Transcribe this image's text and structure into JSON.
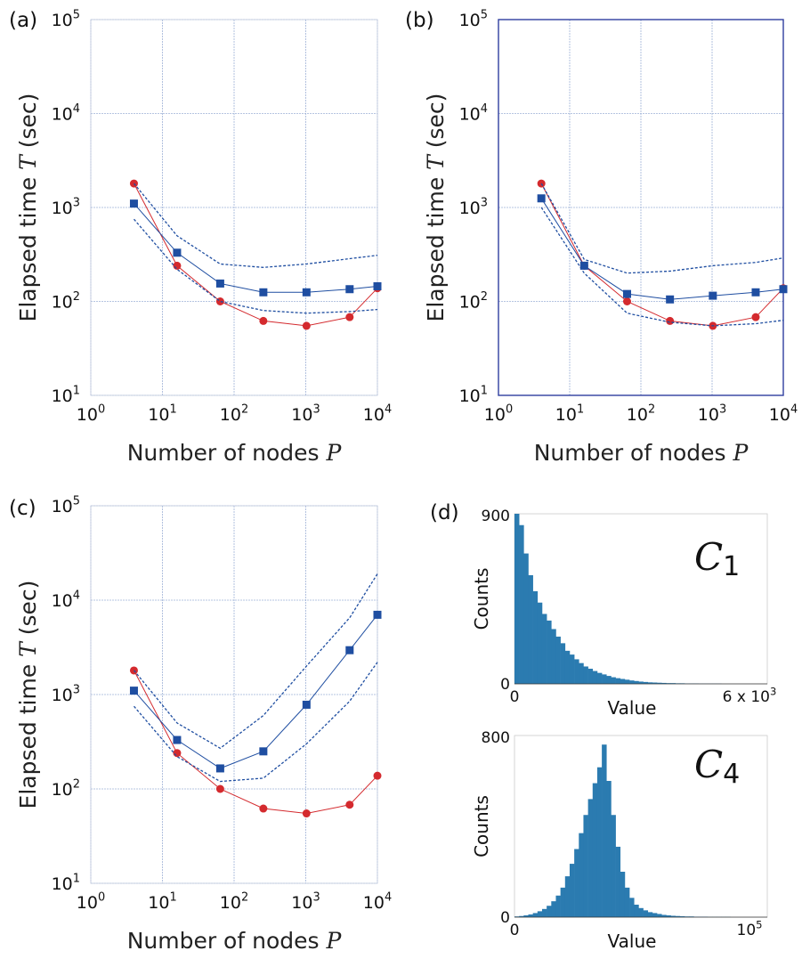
{
  "chart_data": [
    {
      "panel_label": "(a)",
      "type": "line",
      "xscale": "log",
      "yscale": "log",
      "xlim": [
        1,
        10000
      ],
      "ylim": [
        10,
        100000
      ],
      "xticks": [
        "10^0",
        "10^1",
        "10^2",
        "10^3",
        "10^4"
      ],
      "yticks": [
        "10^1",
        "10^2",
        "10^3",
        "10^4",
        "10^5"
      ],
      "xlabel": "Number of nodes",
      "xlabel_var": "P",
      "ylabel": "Elapsed time",
      "ylabel_var": "T",
      "ylabel_unit": "(sec)",
      "grid": true,
      "series": [
        {
          "x": [
            4,
            16,
            64,
            256,
            1024,
            4096,
            10000
          ],
          "y": [
            1800,
            240,
            100,
            62,
            55,
            68,
            138
          ],
          "color": "#d42a2e",
          "style": "line-circle"
        },
        {
          "x": [
            4,
            16,
            64,
            256,
            1024,
            4096,
            10000
          ],
          "y": [
            1100,
            330,
            155,
            125,
            125,
            135,
            145
          ],
          "color": "#1f4ea1",
          "style": "line-square"
        },
        {
          "x": [
            4,
            16,
            64,
            256,
            1024,
            4096,
            10000
          ],
          "y": [
            1800,
            500,
            250,
            230,
            250,
            285,
            310
          ],
          "color": "#1f4ea1",
          "style": "dashed"
        },
        {
          "x": [
            4,
            16,
            64,
            256,
            1024,
            4096,
            10000
          ],
          "y": [
            750,
            220,
            100,
            80,
            75,
            78,
            82
          ],
          "color": "#1f4ea1",
          "style": "dashed"
        }
      ]
    },
    {
      "panel_label": "(b)",
      "type": "line",
      "xscale": "log",
      "yscale": "log",
      "xlim": [
        1,
        10000
      ],
      "ylim": [
        10,
        100000
      ],
      "xticks": [
        "10^0",
        "10^1",
        "10^2",
        "10^3",
        "10^4"
      ],
      "yticks": [
        "10^1",
        "10^2",
        "10^3",
        "10^4",
        "10^5"
      ],
      "xlabel": "Number of nodes",
      "xlabel_var": "P",
      "ylabel": "Elapsed time",
      "ylabel_var": "T",
      "ylabel_unit": "(sec)",
      "grid": true,
      "series": [
        {
          "x": [
            4,
            16,
            64,
            256,
            1024,
            4096,
            10000
          ],
          "y": [
            1800,
            240,
            100,
            62,
            55,
            68,
            138
          ],
          "color": "#d42a2e",
          "style": "line-circle"
        },
        {
          "x": [
            4,
            16,
            64,
            256,
            1024,
            4096,
            10000
          ],
          "y": [
            1250,
            240,
            120,
            105,
            115,
            125,
            135
          ],
          "color": "#1f4ea1",
          "style": "line-square"
        },
        {
          "x": [
            4,
            16,
            64,
            256,
            1024,
            4096,
            10000
          ],
          "y": [
            1800,
            280,
            200,
            210,
            240,
            260,
            290
          ],
          "color": "#1f4ea1",
          "style": "dashed"
        },
        {
          "x": [
            4,
            16,
            64,
            256,
            1024,
            4096,
            10000
          ],
          "y": [
            1000,
            200,
            75,
            60,
            55,
            58,
            63
          ],
          "color": "#1f4ea1",
          "style": "dashed"
        }
      ]
    },
    {
      "panel_label": "(c)",
      "type": "line",
      "xscale": "log",
      "yscale": "log",
      "xlim": [
        1,
        10000
      ],
      "ylim": [
        10,
        100000
      ],
      "xticks": [
        "10^0",
        "10^1",
        "10^2",
        "10^3",
        "10^4"
      ],
      "yticks": [
        "10^1",
        "10^2",
        "10^3",
        "10^4",
        "10^5"
      ],
      "xlabel": "Number of nodes",
      "xlabel_var": "P",
      "ylabel": "Elapsed time",
      "ylabel_var": "T",
      "ylabel_unit": "(sec)",
      "grid": true,
      "series": [
        {
          "x": [
            4,
            16,
            64,
            256,
            1024,
            4096,
            10000
          ],
          "y": [
            1800,
            240,
            100,
            62,
            55,
            68,
            138
          ],
          "color": "#d42a2e",
          "style": "line-circle"
        },
        {
          "x": [
            4,
            16,
            64,
            256,
            1024,
            4096,
            10000
          ],
          "y": [
            1100,
            330,
            165,
            250,
            780,
            2950,
            7000
          ],
          "color": "#1f4ea1",
          "style": "line-square"
        },
        {
          "x": [
            4,
            16,
            64,
            256,
            1024,
            4096,
            10000
          ],
          "y": [
            1800,
            500,
            270,
            600,
            2000,
            6500,
            19000
          ],
          "color": "#1f4ea1",
          "style": "dashed"
        },
        {
          "x": [
            4,
            16,
            64,
            256,
            1024,
            4096,
            10000
          ],
          "y": [
            750,
            220,
            120,
            130,
            300,
            850,
            2200
          ],
          "color": "#1f4ea1",
          "style": "dashed"
        }
      ]
    },
    {
      "panel_label": "(d)",
      "type": "bar",
      "title_main": "C",
      "title_sub": "1",
      "ylabel": "Counts",
      "xlabel": "Value",
      "y_tick_top": "900",
      "y_tick_bottom": "0",
      "x_tick_left": "0",
      "x_tick_right": "6 x 10^3",
      "ylim": [
        0,
        900
      ],
      "bar_color": "#2b7bb0",
      "values": [
        900,
        840,
        690,
        575,
        490,
        430,
        370,
        335,
        290,
        250,
        215,
        175,
        155,
        130,
        110,
        92,
        80,
        68,
        58,
        50,
        42,
        35,
        30,
        26,
        22,
        18,
        15,
        12,
        10,
        8,
        7,
        6,
        5,
        4,
        4,
        3,
        3,
        2,
        2,
        2,
        1,
        1,
        1,
        1,
        1,
        0,
        0,
        0,
        0,
        0,
        0,
        0,
        0,
        0,
        0
      ]
    },
    {
      "panel_label": "",
      "type": "bar",
      "title_main": "C",
      "title_sub": "4",
      "ylabel": "Counts",
      "xlabel": "Value",
      "y_tick_top": "800",
      "y_tick_bottom": "0",
      "x_tick_left": "0",
      "x_tick_right": "10^5",
      "ylim": [
        0,
        800
      ],
      "bar_color": "#2b7bb0",
      "values": [
        3,
        5,
        8,
        12,
        18,
        26,
        36,
        50,
        70,
        95,
        130,
        180,
        235,
        300,
        370,
        450,
        520,
        590,
        660,
        760,
        600,
        450,
        310,
        200,
        130,
        85,
        55,
        40,
        30,
        22,
        18,
        14,
        10,
        8,
        6,
        5,
        4,
        3,
        3,
        2,
        2,
        2,
        1,
        1,
        1,
        1,
        1,
        0,
        0,
        0,
        0,
        0,
        0,
        0,
        0
      ]
    }
  ]
}
